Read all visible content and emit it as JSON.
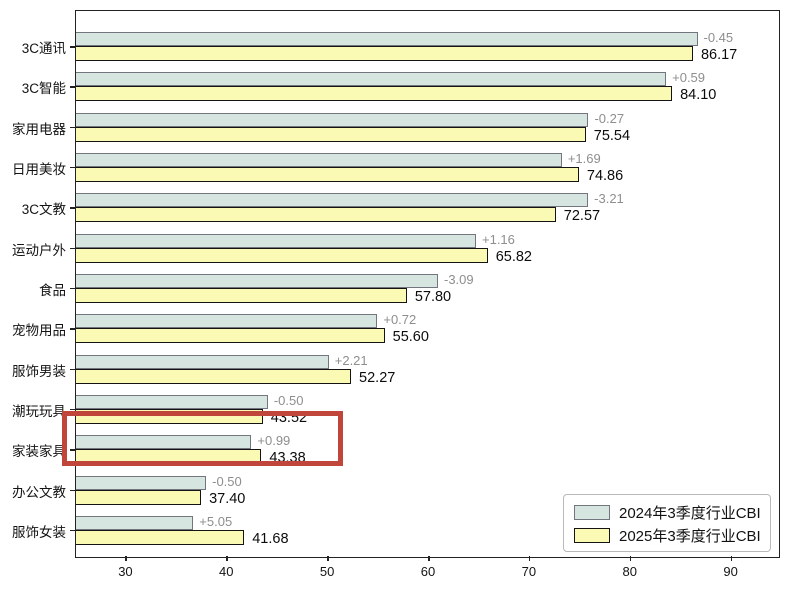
{
  "chart_data": {
    "type": "bar",
    "orientation": "horizontal",
    "title": "",
    "xlabel": "",
    "ylabel": "",
    "grid": false,
    "legend_position": "lower right",
    "xlim": [
      25.0,
      94.7
    ],
    "xticks": [
      30,
      40,
      50,
      60,
      70,
      80,
      90
    ],
    "categories": [
      "3C通讯",
      "3C智能",
      "家用电器",
      "日用美妆",
      "3C文教",
      "运动户外",
      "食品",
      "宠物用品",
      "服饰男装",
      "潮玩玩具",
      "家装家具",
      "办公文教",
      "服饰女装"
    ],
    "series": [
      {
        "name": "2024年3季度行业CBI",
        "color": "#d7e5e0",
        "edge_color": "#73767e",
        "values": [
          86.62,
          83.51,
          75.81,
          73.17,
          75.78,
          64.66,
          60.89,
          54.88,
          50.06,
          44.02,
          42.39,
          37.9,
          36.63
        ]
      },
      {
        "name": "2025年3季度行业CBI",
        "color": "#fafab4",
        "edge_color": "#141414",
        "values": [
          86.17,
          84.1,
          75.54,
          74.86,
          72.57,
          65.82,
          57.8,
          55.6,
          52.27,
          43.52,
          43.38,
          37.4,
          41.68
        ]
      }
    ],
    "delta_labels": [
      "-0.45",
      "+0.59",
      "-0.27",
      "+1.69",
      "-3.21",
      "+1.16",
      "-3.09",
      "+0.72",
      "+2.21",
      "-0.50",
      "+0.99",
      "-0.50",
      "+5.05"
    ],
    "value_labels": [
      "86.17",
      "84.10",
      "75.54",
      "74.86",
      "72.57",
      "65.82",
      "57.80",
      "55.60",
      "52.27",
      "43.52",
      "43.38",
      "37.40",
      "41.68"
    ],
    "annotation_colors": {
      "delta": "#8e8e8e",
      "value": "#0c0c0c"
    },
    "highlight": {
      "category": "家装家具",
      "index": 10,
      "color": "#c0453a"
    }
  }
}
